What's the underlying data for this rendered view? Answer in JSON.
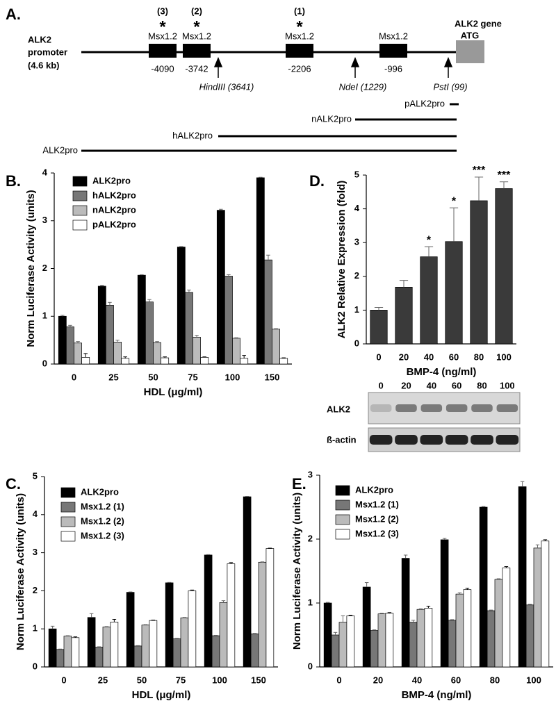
{
  "diagram": {
    "panel_label": "A.",
    "promoter_label": [
      "ALK2",
      "promoter",
      "(4.6 kb)"
    ],
    "gene_label": "ALK2 gene",
    "atg_label": "ATG",
    "sites": [
      {
        "index": "(3)",
        "star": "*",
        "name": "Msx1.2",
        "position": "-4090"
      },
      {
        "index": "(2)",
        "star": "*",
        "name": "Msx1.2",
        "position": "-3742"
      },
      {
        "index": "(1)",
        "star": "*",
        "name": "Msx1.2",
        "position": "-2206"
      },
      {
        "name": "Msx1.2",
        "position": "-996"
      }
    ],
    "restriction_sites": [
      "HindIII (3641)",
      "NdeI (1229)",
      "PstI (99)"
    ],
    "constructs": [
      "pALK2pro",
      "nALK2pro",
      "hALK2pro",
      "ALK2pro"
    ]
  },
  "chart_data": [
    {
      "type": "bar",
      "panel_label": "B.",
      "x_label": "HDL (μg/ml)",
      "y_label": "Norm Luciferase Activity (units)",
      "categories": [
        "0",
        "25",
        "50",
        "75",
        "100",
        "150"
      ],
      "ylim": [
        0,
        4
      ],
      "yticks": [
        0,
        1,
        2,
        3,
        4
      ],
      "legend": "top-left",
      "series": [
        {
          "name": "ALK2pro",
          "color": "#000000",
          "values": [
            1.0,
            1.63,
            1.86,
            2.45,
            3.22,
            3.9
          ],
          "errors": [
            0.02,
            0.02,
            0.01,
            0.01,
            0.02,
            0.01
          ]
        },
        {
          "name": "hALK2pro",
          "color": "#777777",
          "values": [
            0.78,
            1.23,
            1.3,
            1.5,
            1.84,
            2.18
          ],
          "errors": [
            0.03,
            0.06,
            0.05,
            0.05,
            0.03,
            0.1
          ]
        },
        {
          "name": "nALK2pro",
          "color": "#bbbbbb",
          "values": [
            0.44,
            0.46,
            0.45,
            0.56,
            0.54,
            0.73
          ],
          "errors": [
            0.03,
            0.04,
            0.02,
            0.04,
            0.01,
            0.01
          ]
        },
        {
          "name": "pALK2pro",
          "color": "#ffffff",
          "values": [
            0.14,
            0.12,
            0.13,
            0.14,
            0.12,
            0.12
          ],
          "errors": [
            0.08,
            0.03,
            0.02,
            0.01,
            0.06,
            0.01
          ]
        }
      ]
    },
    {
      "type": "bar",
      "panel_label": "D.",
      "x_label": "BMP-4 (ng/ml)",
      "y_label": "ALK2 Relative Expression (fold)",
      "categories": [
        "0",
        "20",
        "40",
        "60",
        "80",
        "100"
      ],
      "ylim": [
        0,
        5
      ],
      "yticks": [
        0,
        1,
        2,
        3,
        4,
        5
      ],
      "series": [
        {
          "color": "#3a3a3a",
          "values": [
            1.0,
            1.68,
            2.58,
            3.03,
            4.24,
            4.6
          ],
          "errors": [
            0.08,
            0.2,
            0.3,
            1.0,
            0.7,
            0.2
          ],
          "annotations": [
            null,
            null,
            "*",
            "*",
            "***",
            "***"
          ]
        }
      ]
    },
    {
      "type": "bar",
      "panel_label": "C.",
      "x_label": "HDL (μg/ml)",
      "y_label": "Norm Luciferase Activity (units)",
      "categories": [
        "0",
        "25",
        "50",
        "75",
        "100",
        "150"
      ],
      "ylim": [
        0,
        5
      ],
      "yticks": [
        0,
        1,
        2,
        3,
        4,
        5
      ],
      "legend": "top-left",
      "series": [
        {
          "name": "ALK2pro",
          "color": "#000000",
          "values": [
            1.0,
            1.3,
            1.96,
            2.21,
            2.94,
            4.47
          ],
          "errors": [
            0.07,
            0.1,
            0.01,
            0.01,
            0.01,
            0.01
          ]
        },
        {
          "name": "Msx1.2 (1)",
          "color": "#777777",
          "values": [
            0.46,
            0.52,
            0.55,
            0.74,
            0.82,
            0.87
          ],
          "errors": [
            0.01,
            0.01,
            0.01,
            0.01,
            0.01,
            0.01
          ]
        },
        {
          "name": "Msx1.2 (2)",
          "color": "#bbbbbb",
          "values": [
            0.81,
            1.05,
            1.1,
            1.29,
            1.69,
            2.75
          ],
          "errors": [
            0.01,
            0.01,
            0.01,
            0.01,
            0.05,
            0.01
          ]
        },
        {
          "name": "Msx1.2 (3)",
          "color": "#ffffff",
          "values": [
            0.77,
            1.18,
            1.22,
            2.0,
            2.71,
            3.11
          ],
          "errors": [
            0.02,
            0.07,
            0.01,
            0.02,
            0.03,
            0.01
          ]
        }
      ]
    },
    {
      "type": "bar",
      "panel_label": "E.",
      "x_label": "BMP-4 (ng/ml)",
      "y_label": "Norm Luciferase Activity (units)",
      "categories": [
        "0",
        "20",
        "40",
        "60",
        "80",
        "100"
      ],
      "ylim": [
        0,
        3
      ],
      "yticks": [
        0,
        1,
        2,
        3
      ],
      "legend": "top-left",
      "series": [
        {
          "name": "ALK2pro",
          "color": "#000000",
          "values": [
            1.0,
            1.25,
            1.7,
            1.99,
            2.5,
            2.82
          ],
          "errors": [
            0.01,
            0.07,
            0.05,
            0.02,
            0.01,
            0.08
          ]
        },
        {
          "name": "Msx1.2 (1)",
          "color": "#777777",
          "values": [
            0.5,
            0.57,
            0.7,
            0.73,
            0.88,
            0.97
          ],
          "errors": [
            0.04,
            0.01,
            0.03,
            0.01,
            0.01,
            0.01
          ]
        },
        {
          "name": "Msx1.2 (2)",
          "color": "#bbbbbb",
          "values": [
            0.7,
            0.83,
            0.9,
            1.14,
            1.37,
            1.86
          ],
          "errors": [
            0.1,
            0.01,
            0.01,
            0.02,
            0.01,
            0.05
          ]
        },
        {
          "name": "Msx1.2 (3)",
          "color": "#ffffff",
          "values": [
            0.8,
            0.84,
            0.92,
            1.21,
            1.55,
            1.97
          ],
          "errors": [
            0.01,
            0.01,
            0.03,
            0.02,
            0.02,
            0.02
          ]
        }
      ]
    }
  ],
  "blot": {
    "lanes": [
      "0",
      "20",
      "40",
      "60",
      "80",
      "100"
    ],
    "rows": [
      "ALK2",
      "ß-actin"
    ]
  }
}
